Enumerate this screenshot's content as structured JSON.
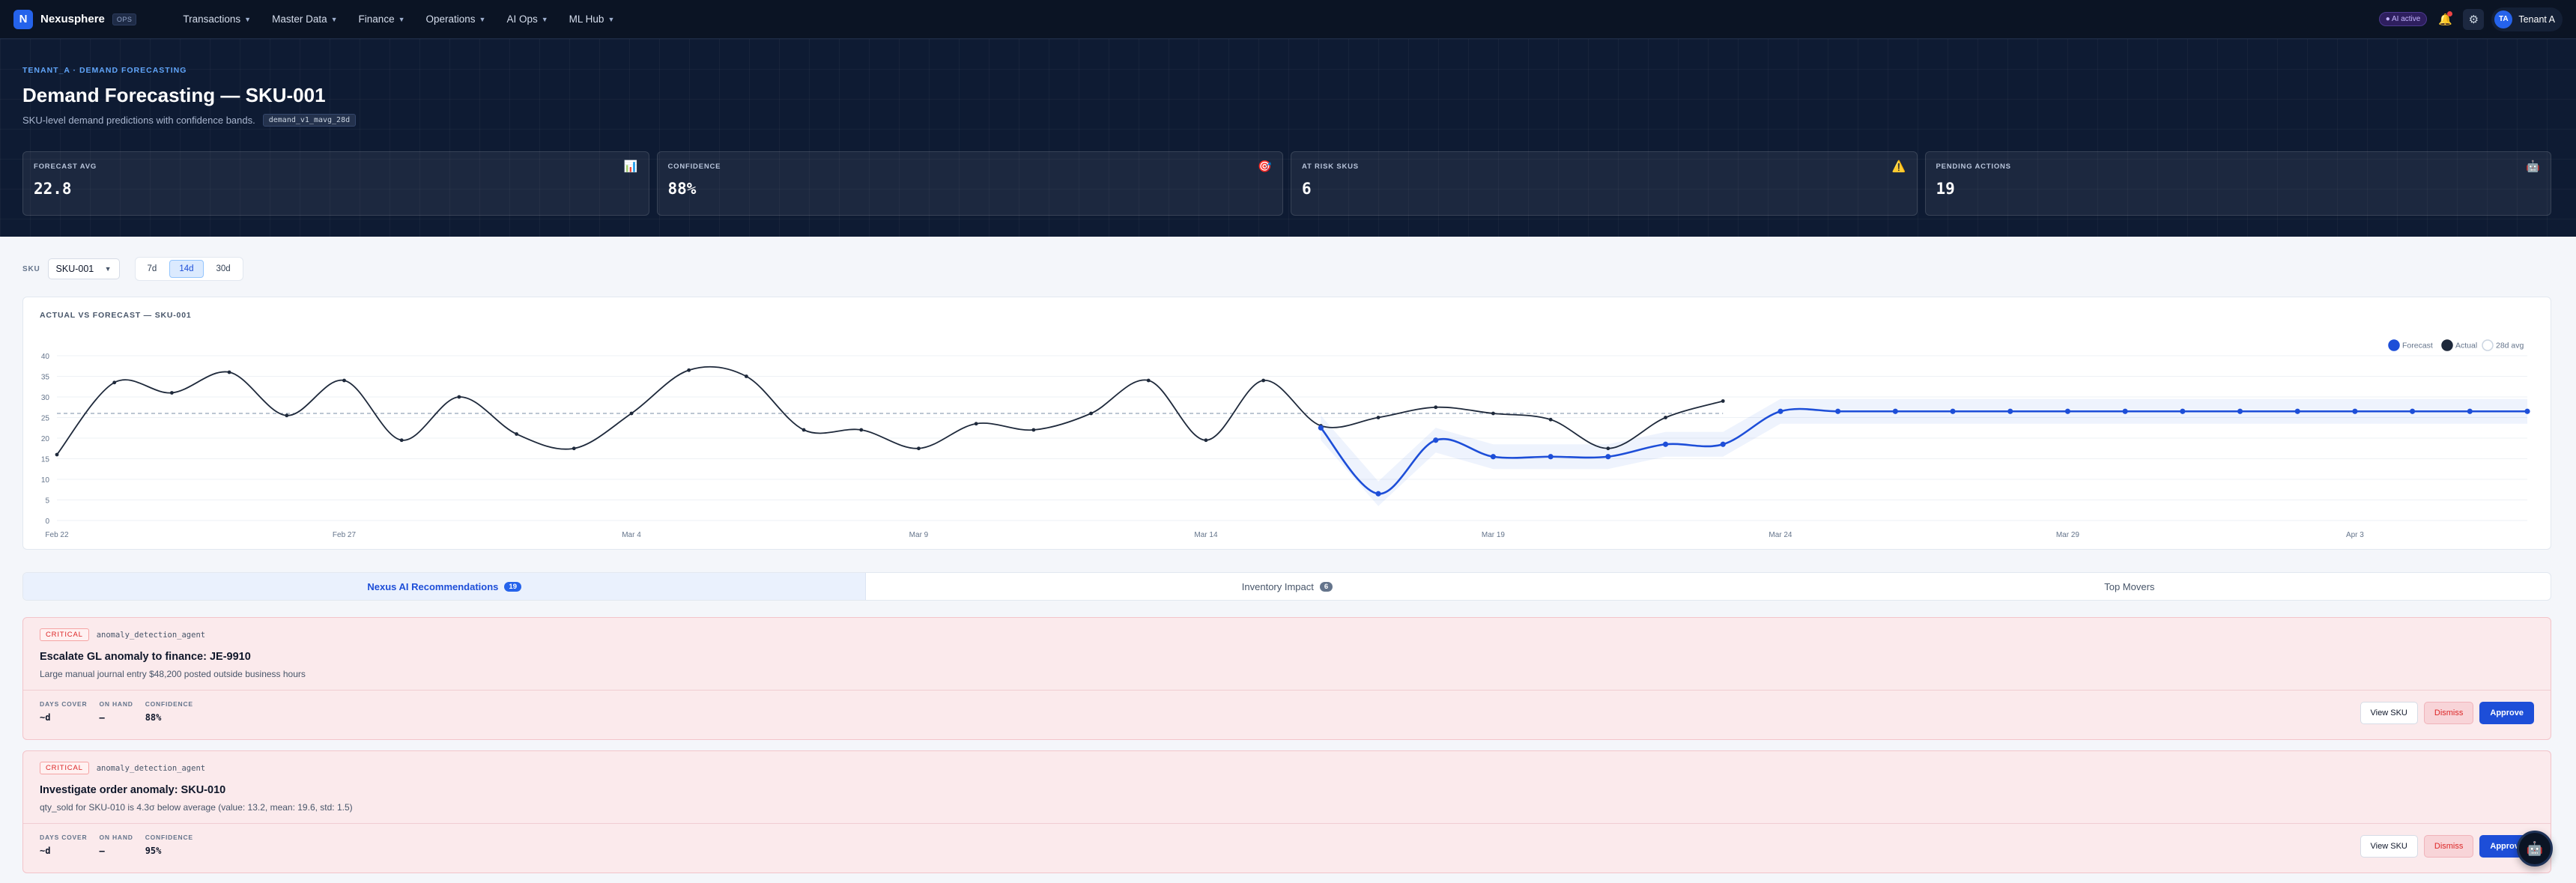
{
  "nav": {
    "logo_letter": "N",
    "brand": "Nexusphere",
    "badge": "OPS",
    "menu": [
      {
        "label": "Transactions"
      },
      {
        "label": "Master Data"
      },
      {
        "label": "Finance"
      },
      {
        "label": "Operations"
      },
      {
        "label": "AI Ops"
      },
      {
        "label": "ML Hub"
      }
    ],
    "ai_status": "● AI active",
    "notif_icon": "bell-icon",
    "settings_icon": "gear-icon",
    "user_initials": "TA",
    "user_name": "Tenant A"
  },
  "hero": {
    "eyebrow": "TENANT_A · DEMAND FORECASTING",
    "title": "Demand Forecasting — SKU-001",
    "subtitle": "SKU-level demand predictions with confidence bands.",
    "model_tag": "demand_v1_mavg_28d",
    "kpis": [
      {
        "label": "FORECAST AVG",
        "value": "22.8",
        "icon": "📊"
      },
      {
        "label": "CONFIDENCE",
        "value": "88%",
        "icon": "🎯"
      },
      {
        "label": "AT RISK SKUS",
        "value": "6",
        "icon": "⚠️"
      },
      {
        "label": "PENDING ACTIONS",
        "value": "19",
        "icon": "🤖"
      }
    ]
  },
  "controls": {
    "sku_label": "SKU",
    "sku_value": "SKU-001",
    "ranges": [
      "7d",
      "14d",
      "30d"
    ],
    "active_range": "14d"
  },
  "chart_data": {
    "type": "line",
    "title": "ACTUAL VS FORECAST — SKU-001",
    "ylim": [
      0,
      40
    ],
    "yticks": [
      0,
      5,
      10,
      15,
      20,
      25,
      30,
      35,
      40
    ],
    "xtick_labels": [
      {
        "label": "Feb 22",
        "index": 0
      },
      {
        "label": "Feb 27",
        "index": 5
      },
      {
        "label": "Mar 4",
        "index": 10
      },
      {
        "label": "Mar 9",
        "index": 15
      },
      {
        "label": "Mar 14",
        "index": 20
      },
      {
        "label": "Mar 19",
        "index": 25
      },
      {
        "label": "Mar 24",
        "index": 30
      },
      {
        "label": "Mar 29",
        "index": 35
      },
      {
        "label": "Apr 3",
        "index": 40
      }
    ],
    "n_points": 44,
    "legend_position": "top-right",
    "grid": true,
    "series": [
      {
        "name": "Actual",
        "color": "#1e293b",
        "start_index": 0,
        "values": [
          16,
          33.5,
          31,
          36,
          25.5,
          34,
          19.5,
          30,
          21,
          17.5,
          26,
          36.5,
          35,
          22,
          22,
          17.5,
          23.5,
          22,
          26,
          34,
          19.5,
          34,
          23,
          25,
          27.5,
          26,
          24.5,
          17.5,
          25,
          29
        ]
      },
      {
        "name": "Forecast",
        "color": "#1d4ed8",
        "start_index": 22,
        "values": [
          22.5,
          6.5,
          19.5,
          15.5,
          15.5,
          15.5,
          18.5,
          18.5,
          26.5,
          26.5,
          26.5,
          26.5,
          26.5,
          26.5,
          26.5,
          26.5,
          26.5,
          26.5,
          26.5,
          26.5,
          26.5,
          26.5
        ]
      },
      {
        "name": "28d avg",
        "color": "#94a3b8",
        "start_index": 0,
        "dashed": true,
        "values": [
          26,
          26,
          26,
          26,
          26,
          26,
          26,
          26,
          26,
          26,
          26,
          26,
          26,
          26,
          26,
          26,
          26,
          26,
          26,
          26,
          26,
          26,
          26,
          26,
          26,
          26,
          26,
          26,
          26,
          26
        ]
      }
    ],
    "band": {
      "start_index": 22,
      "width": 3
    }
  },
  "tabs": [
    {
      "label": "Nexus AI Recommendations",
      "count": "19",
      "active": true
    },
    {
      "label": "Inventory Impact",
      "count": "6",
      "active": false
    },
    {
      "label": "Top Movers",
      "count": "",
      "active": false
    }
  ],
  "recommendations": [
    {
      "severity": "CRITICAL",
      "agent": "anomaly_detection_agent",
      "title": "Escalate GL anomaly to finance: JE-9910",
      "description": "Large manual journal entry $48,200 posted outside business hours",
      "stats": [
        {
          "label": "DAYS COVER",
          "value": "~d"
        },
        {
          "label": "ON HAND",
          "value": "—"
        },
        {
          "label": "CONFIDENCE",
          "value": "88%"
        }
      ],
      "actions": {
        "view": "View SKU",
        "dismiss": "Dismiss",
        "approve": "Approve"
      }
    },
    {
      "severity": "CRITICAL",
      "agent": "anomaly_detection_agent",
      "title": "Investigate order anomaly: SKU-010",
      "description": "qty_sold for SKU-010 is 4.3σ below average (value: 13.2, mean: 19.6, std: 1.5)",
      "stats": [
        {
          "label": "DAYS COVER",
          "value": "~d"
        },
        {
          "label": "ON HAND",
          "value": "—"
        },
        {
          "label": "CONFIDENCE",
          "value": "95%"
        }
      ],
      "actions": {
        "view": "View SKU",
        "dismiss": "Dismiss",
        "approve": "Approve"
      }
    }
  ],
  "fab_icon": "🤖"
}
